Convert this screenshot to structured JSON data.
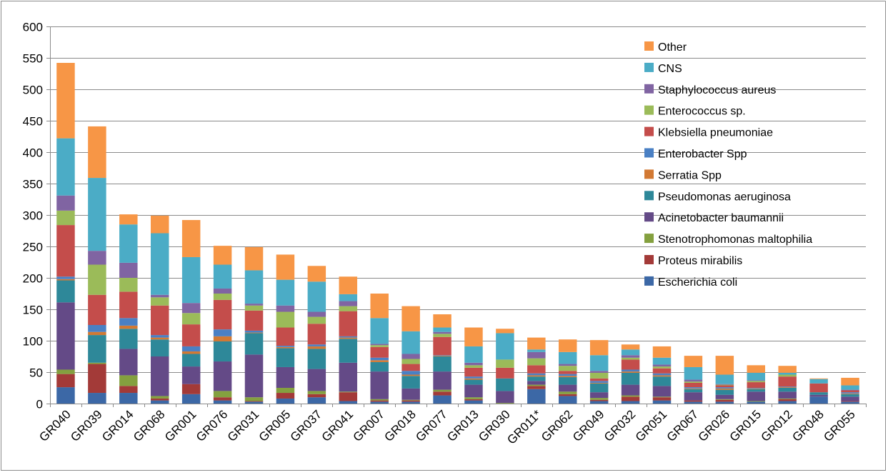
{
  "chart_data": {
    "type": "bar",
    "stacked": true,
    "title": "",
    "xlabel": "",
    "ylabel": "",
    "ylim": [
      0,
      600
    ],
    "yticks": [
      0,
      50,
      100,
      150,
      200,
      250,
      300,
      350,
      400,
      450,
      500,
      550,
      600
    ],
    "grid": true,
    "legend_position": "right",
    "categories": [
      "GR040",
      "GR039",
      "GR014",
      "GR068",
      "GR001",
      "GR076",
      "GR031",
      "GR005",
      "GR037",
      "GR041",
      "GR007",
      "GR018",
      "GR077",
      "GR013",
      "GR030",
      "GR011*",
      "GR062",
      "GR049",
      "GR032",
      "GR051",
      "GR067",
      "GR026",
      "GR015",
      "GR012",
      "GR048",
      "GR055"
    ],
    "series": [
      {
        "name": "Escherichia coli",
        "color": "#3c68a6",
        "values": [
          26,
          17,
          17,
          5,
          15,
          5,
          3,
          8,
          10,
          4,
          3,
          3,
          13,
          5,
          0,
          23,
          12,
          4,
          4,
          5,
          3,
          3,
          3,
          4,
          11,
          3
        ]
      },
      {
        "name": "Proteus mirabilis",
        "color": "#a33a38",
        "values": [
          21,
          46,
          11,
          3,
          16,
          5,
          1,
          9,
          5,
          14,
          2,
          2,
          6,
          2,
          0,
          5,
          3,
          2,
          7,
          5,
          2,
          3,
          0,
          3,
          0,
          1
        ]
      },
      {
        "name": "Stenotrophomonas maltophilia",
        "color": "#84a03f",
        "values": [
          7,
          2,
          17,
          4,
          0,
          10,
          6,
          8,
          5,
          1,
          2,
          1,
          3,
          3,
          1,
          2,
          4,
          3,
          2,
          1,
          0,
          1,
          1,
          1,
          0,
          0
        ]
      },
      {
        "name": "Acinetobacter baumannii",
        "color": "#644a87",
        "values": [
          107,
          0,
          42,
          63,
          28,
          47,
          68,
          33,
          35,
          46,
          44,
          18,
          29,
          20,
          19,
          6,
          11,
          9,
          17,
          17,
          13,
          7,
          15,
          11,
          3,
          7
        ]
      },
      {
        "name": "Pseudomonas aeruginosa",
        "color": "#2e8899",
        "values": [
          35,
          44,
          32,
          27,
          20,
          32,
          34,
          30,
          32,
          38,
          15,
          20,
          24,
          8,
          20,
          7,
          12,
          14,
          19,
          15,
          5,
          8,
          4,
          6,
          4,
          4
        ]
      },
      {
        "name": "Serratia Spp",
        "color": "#d27933",
        "values": [
          2,
          5,
          5,
          3,
          4,
          8,
          1,
          2,
          4,
          2,
          3,
          2,
          1,
          2,
          0,
          2,
          2,
          1,
          2,
          2,
          1,
          2,
          1,
          1,
          0,
          1
        ]
      },
      {
        "name": "Enterobacter Spp",
        "color": "#4a80c4",
        "values": [
          4,
          11,
          12,
          4,
          8,
          11,
          3,
          2,
          3,
          2,
          4,
          6,
          1,
          3,
          0,
          3,
          3,
          3,
          3,
          3,
          2,
          2,
          1,
          1,
          0,
          2
        ]
      },
      {
        "name": "Klebsiella pneumoniae",
        "color": "#c44d4b",
        "values": [
          82,
          48,
          42,
          47,
          35,
          47,
          32,
          29,
          33,
          40,
          17,
          11,
          29,
          14,
          17,
          13,
          5,
          4,
          16,
          8,
          7,
          3,
          9,
          16,
          14,
          3
        ]
      },
      {
        "name": "Enterococcus sp.",
        "color": "#9bbb59",
        "values": [
          23,
          48,
          22,
          13,
          18,
          10,
          8,
          25,
          11,
          8,
          3,
          8,
          5,
          4,
          13,
          11,
          8,
          9,
          3,
          3,
          2,
          1,
          2,
          3,
          0,
          0
        ]
      },
      {
        "name": "Staphylococcus aureus",
        "color": "#8064a2",
        "values": [
          24,
          22,
          24,
          4,
          16,
          8,
          3,
          10,
          8,
          8,
          2,
          8,
          3,
          4,
          0,
          10,
          3,
          3,
          4,
          3,
          3,
          1,
          1,
          0,
          0,
          1
        ]
      },
      {
        "name": "CNS",
        "color": "#4bacc6",
        "values": [
          91,
          116,
          61,
          98,
          73,
          38,
          53,
          41,
          48,
          11,
          41,
          36,
          7,
          26,
          42,
          4,
          19,
          25,
          9,
          11,
          20,
          15,
          12,
          3,
          7,
          7
        ]
      },
      {
        "name": "Other",
        "color": "#f79646",
        "values": [
          120,
          82,
          16,
          28,
          59,
          30,
          37,
          40,
          25,
          28,
          39,
          40,
          21,
          30,
          7,
          19,
          20,
          24,
          8,
          18,
          18,
          30,
          12,
          11,
          1,
          12
        ]
      }
    ],
    "legend_order": [
      "Other",
      "CNS",
      "Staphylococcus aureus",
      "Enterococcus sp.",
      "Klebsiella pneumoniae",
      "Enterobacter Spp",
      "Serratia Spp",
      "Pseudomonas aeruginosa",
      "Acinetobacter baumannii",
      "Stenotrophomonas maltophilia",
      "Proteus mirabilis",
      "Escherichia coli"
    ]
  }
}
